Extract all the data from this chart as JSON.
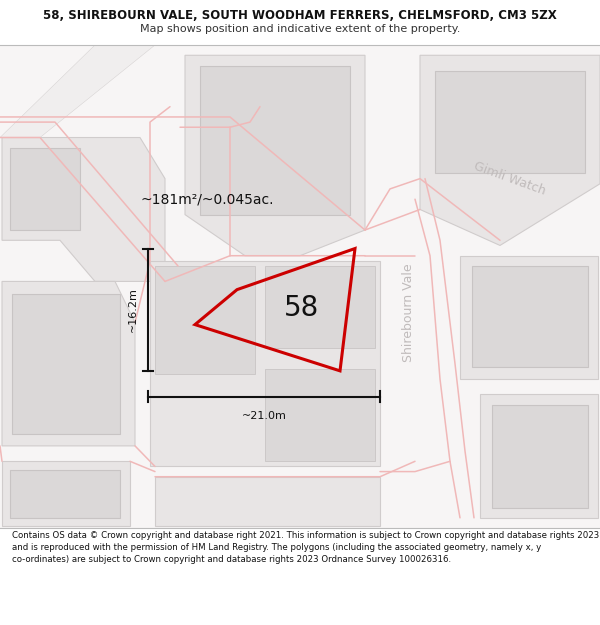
{
  "title_line1": "58, SHIREBOURN VALE, SOUTH WOODHAM FERRERS, CHELMSFORD, CM3 5ZX",
  "title_line2": "Map shows position and indicative extent of the property.",
  "footer_text": "Contains OS data © Crown copyright and database right 2021. This information is subject to Crown copyright and database rights 2023 and is reproduced with the permission of HM Land Registry. The polygons (including the associated geometry, namely x, y co-ordinates) are subject to Crown copyright and database rights 2023 Ordnance Survey 100026316.",
  "bg_color": "#ffffff",
  "map_bg": "#f7f5f5",
  "block_fill": "#e8e5e5",
  "block_edge": "#d0cccc",
  "inner_fill": "#dbd8d8",
  "inner_edge": "#c8c4c4",
  "road_pink": "#f0b8b8",
  "plot_color": "#cc0000",
  "street_color": "#c0bbbb",
  "dim_color": "#111111",
  "number_label": "58",
  "area_label": "~181m²/~0.045ac.",
  "width_label": "~21.0m",
  "height_label": "~16.2m",
  "street_name_1": "Shirebourn Vale",
  "street_name_2": "Gimli Watch",
  "title_fontsize": 8.5,
  "footer_fontsize": 6.2,
  "map_number_fontsize": 20,
  "area_fontsize": 10,
  "dim_fontsize": 8,
  "street_fontsize": 9
}
